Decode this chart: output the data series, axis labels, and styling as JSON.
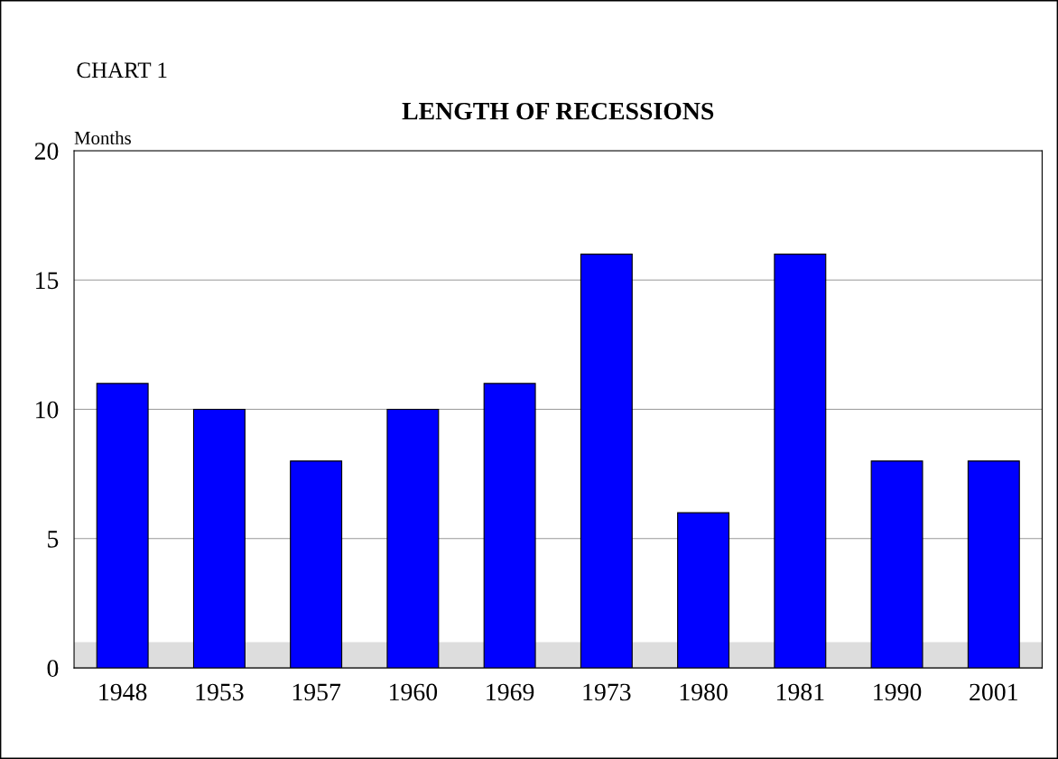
{
  "chart_data": {
    "type": "bar",
    "title": "LENGTH OF RECESSIONS",
    "ylabel": "Months",
    "annotations": [
      "CHART 1"
    ],
    "categories": [
      "1948",
      "1953",
      "1957",
      "1960",
      "1969",
      "1973",
      "1980",
      "1981",
      "1990",
      "2001"
    ],
    "values": [
      11,
      10,
      8,
      10,
      11,
      16,
      6,
      16,
      8,
      8
    ],
    "color": "#0000ff",
    "ylim": [
      0,
      20
    ],
    "yticks": [
      0,
      5,
      10,
      15,
      20
    ],
    "bands": [
      {
        "axis": "y",
        "from": 0,
        "to": 1,
        "color": "#dddddd"
      }
    ],
    "grid": "y"
  }
}
